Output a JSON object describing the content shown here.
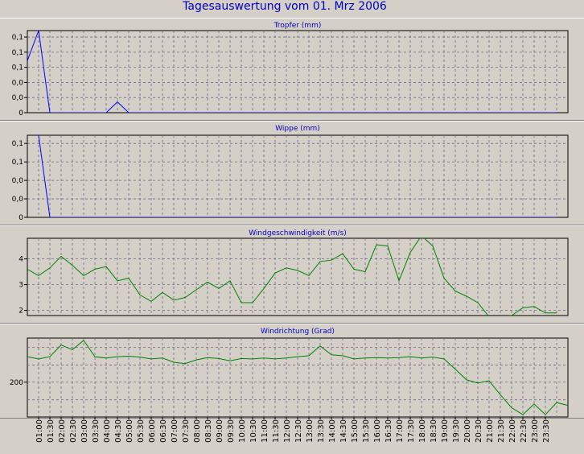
{
  "page": {
    "title": "Tagesauswertung vom 01. Mrz 2006"
  },
  "chart_data": [
    {
      "type": "line",
      "title": "Tropfer (mm)",
      "color": "#0000ff",
      "ylim": [
        0,
        0.19
      ],
      "yticks": [
        0,
        0.035,
        0.07,
        0.105,
        0.14,
        0.175
      ],
      "ytick_labels": [
        "0",
        "0,0",
        "0,0",
        "0,1",
        "0,1",
        "0,1"
      ],
      "x": [
        "01:00",
        "01:30",
        "02:00",
        "02:30",
        "03:00",
        "03:30",
        "04:00",
        "04:30",
        "05:00",
        "05:30",
        "06:00",
        "06:30",
        "07:00",
        "07:30",
        "08:00",
        "08:30",
        "09:00",
        "09:30",
        "10:00",
        "10:30",
        "11:00",
        "11:30",
        "12:00",
        "12:30",
        "13:00",
        "13:30",
        "14:00",
        "14:30",
        "15:00",
        "15:30",
        "16:00",
        "16:30",
        "17:00",
        "17:30",
        "18:00",
        "18:30",
        "19:00",
        "19:30",
        "20:00",
        "20:30",
        "21:00",
        "21:30",
        "22:00",
        "22:30",
        "23:00",
        "23:30"
      ],
      "points": [
        [
          "00:30",
          0.12
        ],
        [
          "01:00",
          0.19
        ],
        [
          "01:30",
          0
        ],
        [
          "02:00",
          0
        ],
        [
          "02:30",
          0
        ],
        [
          "03:00",
          0
        ],
        [
          "03:30",
          0
        ],
        [
          "04:00",
          0
        ],
        [
          "04:30",
          0.025
        ],
        [
          "05:00",
          0
        ],
        [
          "05:30",
          0
        ],
        [
          "06:00",
          0
        ],
        [
          "06:30",
          0
        ],
        [
          "07:00",
          0
        ],
        [
          "07:30",
          0
        ],
        [
          "08:00",
          0
        ],
        [
          "08:30",
          0
        ],
        [
          "09:00",
          0
        ],
        [
          "09:30",
          0
        ],
        [
          "10:00",
          0
        ],
        [
          "10:30",
          0
        ],
        [
          "11:00",
          0
        ],
        [
          "11:30",
          0
        ],
        [
          "12:00",
          0
        ],
        [
          "12:30",
          0
        ],
        [
          "13:00",
          0
        ],
        [
          "13:30",
          0
        ],
        [
          "14:00",
          0
        ],
        [
          "14:30",
          0
        ],
        [
          "15:00",
          0
        ],
        [
          "15:30",
          0
        ],
        [
          "16:00",
          0
        ],
        [
          "16:30",
          0
        ],
        [
          "17:00",
          0
        ],
        [
          "17:30",
          0
        ],
        [
          "18:00",
          0
        ],
        [
          "18:30",
          0
        ],
        [
          "19:00",
          0
        ],
        [
          "19:30",
          0
        ],
        [
          "20:00",
          0
        ],
        [
          "20:30",
          0
        ],
        [
          "21:00",
          0
        ],
        [
          "21:30",
          0
        ],
        [
          "22:00",
          0
        ],
        [
          "22:30",
          0
        ],
        [
          "23:00",
          0
        ],
        [
          "23:30",
          0
        ],
        [
          "24:00",
          0
        ]
      ]
    },
    {
      "type": "line",
      "title": "Wippe (mm)",
      "color": "#0000ff",
      "ylim": [
        0,
        0.2
      ],
      "yticks": [
        0,
        0.045,
        0.09,
        0.135,
        0.18
      ],
      "ytick_labels": [
        "0",
        "0,0",
        "0,0",
        "0,1",
        "0,1"
      ],
      "x": [
        "01:00",
        "01:30",
        "02:00",
        "02:30",
        "03:00",
        "03:30",
        "04:00",
        "04:30",
        "05:00",
        "05:30",
        "06:00",
        "06:30",
        "07:00",
        "07:30",
        "08:00",
        "08:30",
        "09:00",
        "09:30",
        "10:00",
        "10:30",
        "11:00",
        "11:30",
        "12:00",
        "12:30",
        "13:00",
        "13:30",
        "14:00",
        "14:30",
        "15:00",
        "15:30",
        "16:00",
        "16:30",
        "17:00",
        "17:30",
        "18:00",
        "18:30",
        "19:00",
        "19:30",
        "20:00",
        "20:30",
        "21:00",
        "21:30",
        "22:00",
        "22:30",
        "23:00",
        "23:30"
      ],
      "points": [
        [
          "01:00",
          0.2
        ],
        [
          "01:30",
          0
        ],
        [
          "02:00",
          0
        ],
        [
          "02:30",
          0
        ],
        [
          "03:00",
          0
        ],
        [
          "03:30",
          0
        ],
        [
          "04:00",
          0
        ],
        [
          "04:30",
          0
        ],
        [
          "05:00",
          0
        ],
        [
          "05:30",
          0
        ],
        [
          "06:00",
          0
        ],
        [
          "06:30",
          0
        ],
        [
          "07:00",
          0
        ],
        [
          "07:30",
          0
        ],
        [
          "08:00",
          0
        ],
        [
          "08:30",
          0
        ],
        [
          "09:00",
          0
        ],
        [
          "09:30",
          0
        ],
        [
          "10:00",
          0
        ],
        [
          "10:30",
          0
        ],
        [
          "11:00",
          0
        ],
        [
          "11:30",
          0
        ],
        [
          "12:00",
          0
        ],
        [
          "12:30",
          0
        ],
        [
          "13:00",
          0
        ],
        [
          "13:30",
          0
        ],
        [
          "14:00",
          0
        ],
        [
          "14:30",
          0
        ],
        [
          "15:00",
          0
        ],
        [
          "15:30",
          0
        ],
        [
          "16:00",
          0
        ],
        [
          "16:30",
          0
        ],
        [
          "17:00",
          0
        ],
        [
          "17:30",
          0
        ],
        [
          "18:00",
          0
        ],
        [
          "18:30",
          0
        ],
        [
          "19:00",
          0
        ],
        [
          "19:30",
          0
        ],
        [
          "20:00",
          0
        ],
        [
          "20:30",
          0
        ],
        [
          "21:00",
          0
        ],
        [
          "21:30",
          0
        ],
        [
          "22:00",
          0
        ],
        [
          "22:30",
          0
        ],
        [
          "23:00",
          0
        ],
        [
          "23:30",
          0
        ],
        [
          "24:00",
          0
        ]
      ]
    },
    {
      "type": "line",
      "title": "Windgeschwindigkeit (m/s)",
      "color": "#008000",
      "ylim": [
        1.8,
        4.8
      ],
      "yticks": [
        2,
        3,
        4
      ],
      "ytick_labels": [
        "2",
        "3",
        "4"
      ],
      "x": [
        "01:00",
        "01:30",
        "02:00",
        "02:30",
        "03:00",
        "03:30",
        "04:00",
        "04:30",
        "05:00",
        "05:30",
        "06:00",
        "06:30",
        "07:00",
        "07:30",
        "08:00",
        "08:30",
        "09:00",
        "09:30",
        "10:00",
        "10:30",
        "11:00",
        "11:30",
        "12:00",
        "12:30",
        "13:00",
        "13:30",
        "14:00",
        "14:30",
        "15:00",
        "15:30",
        "16:00",
        "16:30",
        "17:00",
        "17:30",
        "18:00",
        "18:30",
        "19:00",
        "19:30",
        "20:00",
        "20:30",
        "21:00",
        "21:30",
        "22:00",
        "22:30",
        "23:00",
        "23:30"
      ],
      "points": [
        [
          "00:30",
          3.6
        ],
        [
          "01:00",
          3.35
        ],
        [
          "01:30",
          3.65
        ],
        [
          "02:00",
          4.1
        ],
        [
          "02:30",
          3.75
        ],
        [
          "03:00",
          3.35
        ],
        [
          "03:30",
          3.6
        ],
        [
          "04:00",
          3.7
        ],
        [
          "04:30",
          3.15
        ],
        [
          "05:00",
          3.25
        ],
        [
          "05:30",
          2.6
        ],
        [
          "06:00",
          2.35
        ],
        [
          "06:30",
          2.7
        ],
        [
          "07:00",
          2.4
        ],
        [
          "07:30",
          2.5
        ],
        [
          "08:00",
          2.8
        ],
        [
          "08:30",
          3.1
        ],
        [
          "09:00",
          2.85
        ],
        [
          "09:30",
          3.15
        ],
        [
          "10:00",
          2.3
        ],
        [
          "10:30",
          2.3
        ],
        [
          "11:00",
          2.85
        ],
        [
          "11:30",
          3.45
        ],
        [
          "12:00",
          3.65
        ],
        [
          "12:30",
          3.55
        ],
        [
          "13:00",
          3.35
        ],
        [
          "13:30",
          3.9
        ],
        [
          "14:00",
          3.95
        ],
        [
          "14:30",
          4.2
        ],
        [
          "15:00",
          3.6
        ],
        [
          "15:30",
          3.5
        ],
        [
          "16:00",
          4.55
        ],
        [
          "16:30",
          4.5
        ],
        [
          "17:00",
          3.15
        ],
        [
          "17:30",
          4.25
        ],
        [
          "18:00",
          4.9
        ],
        [
          "18:30",
          4.5
        ],
        [
          "19:00",
          3.25
        ],
        [
          "19:30",
          2.75
        ],
        [
          "20:00",
          2.55
        ],
        [
          "20:30",
          2.3
        ],
        [
          "21:00",
          1.75
        ],
        [
          "21:30",
          1.75
        ],
        [
          "22:00",
          1.8
        ],
        [
          "22:30",
          2.1
        ],
        [
          "23:00",
          2.15
        ],
        [
          "23:30",
          1.9
        ],
        [
          "24:00",
          1.9
        ]
      ]
    },
    {
      "type": "line",
      "title": "Windrichtung (Grad)",
      "color": "#008000",
      "ylim": [
        125,
        295
      ],
      "yticks": [
        200
      ],
      "ytick_labels": [
        "200"
      ],
      "x": [
        "01:00",
        "01:30",
        "02:00",
        "02:30",
        "03:00",
        "03:30",
        "04:00",
        "04:30",
        "05:00",
        "05:30",
        "06:00",
        "06:30",
        "07:00",
        "07:30",
        "08:00",
        "08:30",
        "09:00",
        "09:30",
        "10:00",
        "10:30",
        "11:00",
        "11:30",
        "12:00",
        "12:30",
        "13:00",
        "13:30",
        "14:00",
        "14:30",
        "15:00",
        "15:30",
        "16:00",
        "16:30",
        "17:00",
        "17:30",
        "18:00",
        "18:30",
        "19:00",
        "19:30",
        "20:00",
        "20:30",
        "21:00",
        "21:30",
        "22:00",
        "22:30",
        "23:00",
        "23:30"
      ],
      "points": [
        [
          "00:30",
          255
        ],
        [
          "01:00",
          250
        ],
        [
          "01:30",
          255
        ],
        [
          "02:00",
          280
        ],
        [
          "02:30",
          270
        ],
        [
          "03:00",
          290
        ],
        [
          "03:30",
          255
        ],
        [
          "04:00",
          252
        ],
        [
          "04:30",
          255
        ],
        [
          "05:00",
          256
        ],
        [
          "05:30",
          254
        ],
        [
          "06:00",
          250
        ],
        [
          "06:30",
          252
        ],
        [
          "07:00",
          243
        ],
        [
          "07:30",
          240
        ],
        [
          "08:00",
          248
        ],
        [
          "08:30",
          253
        ],
        [
          "09:00",
          251
        ],
        [
          "09:30",
          246
        ],
        [
          "10:00",
          251
        ],
        [
          "10:30",
          250
        ],
        [
          "11:00",
          252
        ],
        [
          "11:30",
          250
        ],
        [
          "12:00",
          252
        ],
        [
          "12:30",
          255
        ],
        [
          "13:00",
          257
        ],
        [
          "13:30",
          278
        ],
        [
          "14:00",
          259
        ],
        [
          "14:30",
          257
        ],
        [
          "15:00",
          250
        ],
        [
          "15:30",
          252
        ],
        [
          "16:00",
          253
        ],
        [
          "16:30",
          252
        ],
        [
          "17:00",
          253
        ],
        [
          "17:30",
          255
        ],
        [
          "18:00",
          252
        ],
        [
          "18:30",
          254
        ],
        [
          "19:00",
          250
        ],
        [
          "19:30",
          228
        ],
        [
          "20:00",
          205
        ],
        [
          "20:30",
          198
        ],
        [
          "21:00",
          203
        ],
        [
          "21:30",
          173
        ],
        [
          "22:00",
          145
        ],
        [
          "22:30",
          130
        ],
        [
          "23:00",
          153
        ],
        [
          "23:30",
          130
        ],
        [
          "24:00",
          156
        ],
        [
          "24:30",
          150
        ]
      ]
    }
  ]
}
